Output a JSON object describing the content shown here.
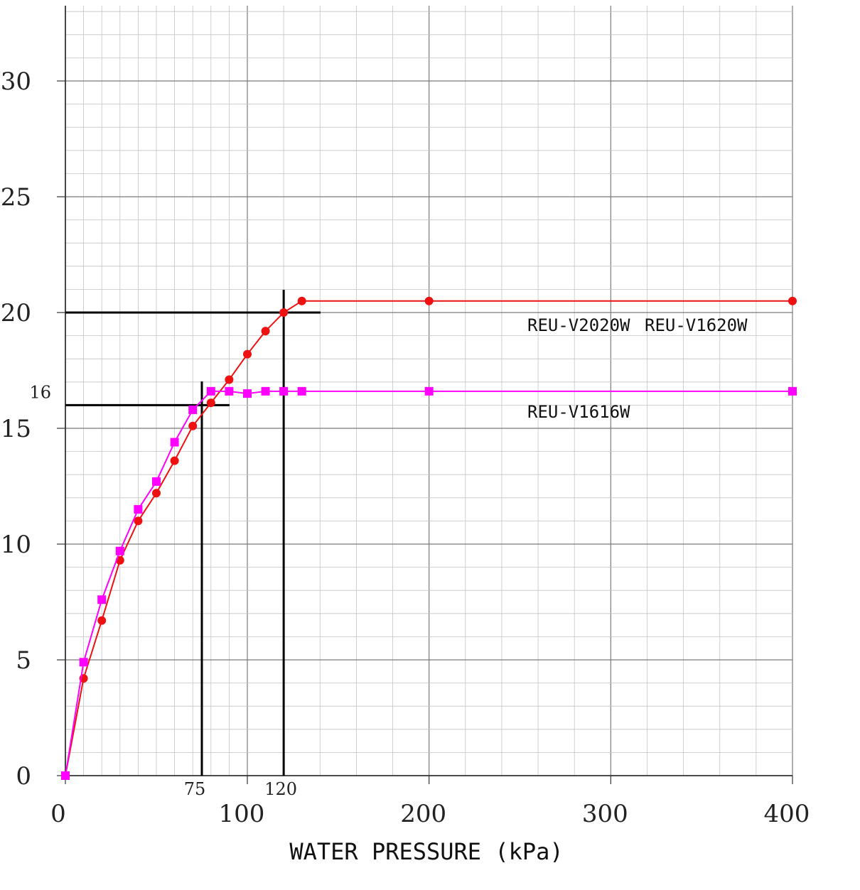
{
  "chart_data": {
    "type": "line",
    "xlabel": "WATER PRESSURE (kPa)",
    "ylabel": "",
    "x_ticks": [
      0,
      100,
      200,
      300,
      400
    ],
    "y_ticks": [
      0,
      5,
      10,
      15,
      20,
      25,
      30
    ],
    "xlim": [
      0,
      400
    ],
    "ylim": [
      0,
      33
    ],
    "grid": true,
    "reference_lines": [
      {
        "x": 75,
        "y": 16,
        "label_x": "75",
        "label_y": "16",
        "color": "#000000"
      },
      {
        "x": 120,
        "y": 20,
        "label_x": "120",
        "label_y": "",
        "color": "#000000"
      }
    ],
    "series": [
      {
        "color": "#ee1111",
        "marker": "circle",
        "labels": [
          "REU-V2020W",
          "REU-V1620W"
        ],
        "x": [
          0,
          10,
          20,
          30,
          40,
          50,
          60,
          70,
          80,
          90,
          100,
          110,
          120,
          130,
          200,
          400
        ],
        "y": [
          0,
          4.2,
          6.7,
          9.3,
          11.0,
          12.2,
          13.6,
          15.1,
          16.1,
          17.1,
          18.2,
          19.2,
          20.0,
          20.5,
          20.5,
          20.5
        ]
      },
      {
        "color": "#ff00ff",
        "marker": "square",
        "labels": [
          "REU-V1616W"
        ],
        "x": [
          0,
          10,
          20,
          30,
          40,
          50,
          60,
          70,
          80,
          90,
          100,
          110,
          120,
          130,
          200,
          400
        ],
        "y": [
          0,
          4.9,
          7.6,
          9.7,
          11.5,
          12.7,
          14.4,
          15.8,
          16.6,
          16.6,
          16.5,
          16.6,
          16.6,
          16.6,
          16.6,
          16.6
        ]
      }
    ]
  }
}
